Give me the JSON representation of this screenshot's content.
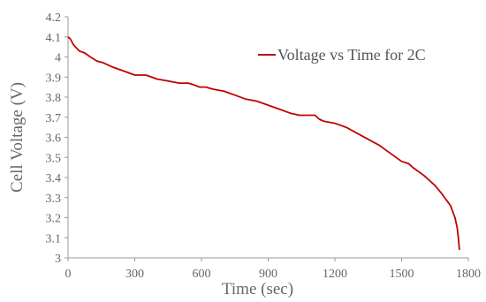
{
  "chart_data": {
    "type": "line",
    "title": "",
    "xlabel": "Time (sec)",
    "ylabel": "Cell Voltage  (V)",
    "xlim": [
      0,
      1800
    ],
    "ylim": [
      3,
      4.2
    ],
    "x_ticks": [
      "0",
      "300",
      "600",
      "900",
      "1200",
      "1500",
      "1800"
    ],
    "y_ticks": [
      "3",
      "3.1",
      "3.2",
      "3.3",
      "3.4",
      "3.5",
      "3.6",
      "3.7",
      "3.8",
      "3.9",
      "4",
      "4.1",
      "4.2"
    ],
    "x_tick_values": [
      0,
      300,
      600,
      900,
      1200,
      1500,
      1800
    ],
    "y_tick_values": [
      3,
      3.1,
      3.2,
      3.3,
      3.4,
      3.5,
      3.6,
      3.7,
      3.8,
      3.9,
      4,
      4.1,
      4.2
    ],
    "grid": false,
    "legend_position": "top-right",
    "series": [
      {
        "name": "Voltage vs Time for 2C",
        "color": "#c00000",
        "x": [
          0,
          10,
          25,
          50,
          75,
          100,
          130,
          160,
          200,
          250,
          300,
          330,
          350,
          400,
          450,
          500,
          540,
          570,
          590,
          620,
          650,
          700,
          750,
          800,
          850,
          900,
          950,
          1000,
          1040,
          1060,
          1090,
          1110,
          1130,
          1150,
          1200,
          1250,
          1300,
          1350,
          1400,
          1450,
          1500,
          1530,
          1550,
          1600,
          1650,
          1680,
          1700,
          1720,
          1730,
          1740,
          1750,
          1755,
          1760
        ],
        "y": [
          4.1,
          4.09,
          4.06,
          4.03,
          4.02,
          4.0,
          3.98,
          3.97,
          3.95,
          3.93,
          3.91,
          3.91,
          3.91,
          3.89,
          3.88,
          3.87,
          3.87,
          3.86,
          3.85,
          3.85,
          3.84,
          3.83,
          3.81,
          3.79,
          3.78,
          3.76,
          3.74,
          3.72,
          3.71,
          3.71,
          3.71,
          3.71,
          3.69,
          3.68,
          3.67,
          3.65,
          3.62,
          3.59,
          3.56,
          3.52,
          3.48,
          3.47,
          3.45,
          3.41,
          3.36,
          3.32,
          3.29,
          3.26,
          3.23,
          3.2,
          3.15,
          3.1,
          3.04
        ]
      }
    ]
  }
}
